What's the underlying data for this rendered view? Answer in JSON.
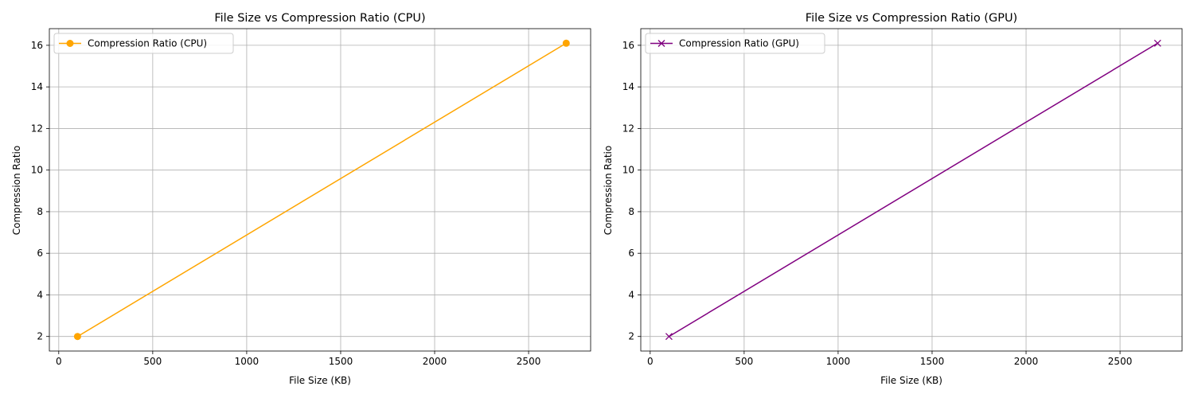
{
  "chart_data": [
    {
      "type": "line",
      "title": "File Size vs Compression Ratio (CPU)",
      "xlabel": "File Size (KB)",
      "ylabel": "Compression Ratio",
      "xlim": [
        -50,
        2830
      ],
      "ylim": [
        1.3,
        16.8
      ],
      "xticks": [
        0,
        500,
        1000,
        1500,
        2000,
        2500
      ],
      "yticks": [
        2,
        4,
        6,
        8,
        10,
        12,
        14,
        16
      ],
      "grid": true,
      "legend_position": "top-left",
      "series": [
        {
          "name": "Compression Ratio (CPU)",
          "color": "#ffa500",
          "marker": "circle",
          "x": [
            100,
            2700
          ],
          "y": [
            2,
            16.1
          ]
        }
      ]
    },
    {
      "type": "line",
      "title": "File Size vs Compression Ratio (GPU)",
      "xlabel": "File Size (KB)",
      "ylabel": "Compression Ratio",
      "xlim": [
        -50,
        2830
      ],
      "ylim": [
        1.3,
        16.8
      ],
      "xticks": [
        0,
        500,
        1000,
        1500,
        2000,
        2500
      ],
      "yticks": [
        2,
        4,
        6,
        8,
        10,
        12,
        14,
        16
      ],
      "grid": true,
      "legend_position": "top-left",
      "series": [
        {
          "name": "Compression Ratio (GPU)",
          "color": "#800080",
          "marker": "x",
          "x": [
            100,
            2700
          ],
          "y": [
            2,
            16.1
          ]
        }
      ]
    }
  ]
}
